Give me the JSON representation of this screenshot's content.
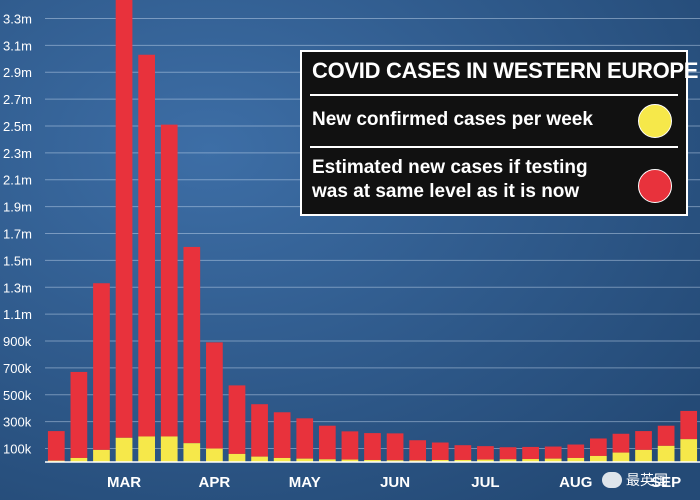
{
  "chart_data": {
    "type": "bar",
    "stacked": true,
    "title": "COVID CASES IN WESTERN EUROPE",
    "y_ticks": [
      "100k",
      "300k",
      "500k",
      "700k",
      "900k",
      "1.1m",
      "1.3m",
      "1.5m",
      "1.7m",
      "1.9m",
      "2.1m",
      "2.3m",
      "2.5m",
      "2.7m",
      "2.9m",
      "3.1m",
      "3.3m"
    ],
    "y_tick_values": [
      100000,
      300000,
      500000,
      700000,
      900000,
      1100000,
      1300000,
      1500000,
      1700000,
      1900000,
      2100000,
      2300000,
      2500000,
      2700000,
      2900000,
      3100000,
      3300000
    ],
    "ylim": [
      0,
      3400000
    ],
    "x_month_labels": [
      "MAR",
      "APR",
      "MAY",
      "JUN",
      "JUL",
      "AUG",
      "SEP"
    ],
    "x_month_positions": [
      3.5,
      7.5,
      11.5,
      15.5,
      19.5,
      23.5,
      27.5
    ],
    "weeks": 29,
    "grid": true,
    "legend_placement": "top-right",
    "series": [
      {
        "name": "New confirmed cases per week",
        "color": "#f6e84a",
        "values": [
          10000,
          30000,
          90000,
          180000,
          190000,
          190000,
          140000,
          100000,
          60000,
          40000,
          30000,
          25000,
          20000,
          18000,
          15000,
          13000,
          12000,
          15000,
          15000,
          18000,
          20000,
          22000,
          25000,
          30000,
          45000,
          70000,
          90000,
          120000,
          170000
        ]
      },
      {
        "name": "Estimated new cases if testing was at same level as it is now",
        "color": "#e8323c",
        "values": [
          220000,
          640000,
          1240000,
          3320000,
          2840000,
          2320000,
          1460000,
          790000,
          510000,
          390000,
          340000,
          300000,
          250000,
          210000,
          200000,
          200000,
          150000,
          130000,
          110000,
          100000,
          90000,
          90000,
          90000,
          100000,
          130000,
          140000,
          140000,
          150000,
          210000
        ]
      }
    ]
  },
  "legend": {
    "title": "COVID CASES IN WESTERN EUROPE",
    "items": [
      {
        "label": "New confirmed cases per week",
        "color": "#f6e84a"
      },
      {
        "label": "Estimated new cases if testing was at same level as it is now",
        "color": "#e8323c"
      }
    ]
  },
  "watermark": {
    "text": "最英国",
    "icon": "wechat-icon"
  }
}
